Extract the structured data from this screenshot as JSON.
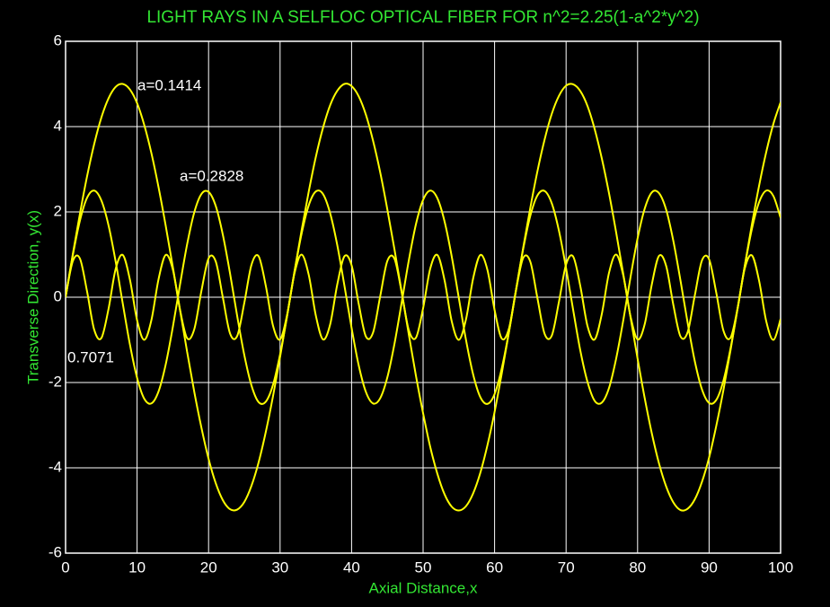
{
  "chart_data": {
    "type": "line",
    "title": "LIGHT RAYS IN A SELFLOC OPTICAL FIBER FOR n^2=2.25(1-a^2*y^2)",
    "x_label": "Axial Distance,x",
    "y_label": "Transverse Direction, y(x)",
    "annotations": [
      "a=0.1414",
      "a=0.2828",
      "0.7071"
    ],
    "xlim": [
      0,
      100
    ],
    "ylim": [
      -6,
      6
    ],
    "xticks": [
      0,
      10,
      20,
      30,
      40,
      50,
      60,
      70,
      80,
      90,
      100
    ],
    "yticks": [
      -6,
      -4,
      -2,
      0,
      2,
      4,
      6
    ],
    "grid": true,
    "x": [
      0,
      1,
      2,
      3,
      4,
      5,
      6,
      7,
      8,
      9,
      10,
      11,
      12,
      13,
      14,
      15,
      16,
      17,
      18,
      19,
      20,
      21,
      22,
      23,
      24,
      25,
      26,
      27,
      28,
      29,
      30,
      31,
      32,
      33,
      34,
      35,
      36,
      37,
      38,
      39,
      40,
      41,
      42,
      43,
      44,
      45,
      46,
      47,
      48,
      49,
      50,
      51,
      52,
      53,
      54,
      55,
      56,
      57,
      58,
      59,
      60,
      61,
      62,
      63,
      64,
      65,
      66,
      67,
      68,
      69,
      70,
      71,
      72,
      73,
      74,
      75,
      76,
      77,
      78,
      79,
      80,
      81,
      82,
      83,
      84,
      85,
      86,
      87,
      88,
      89,
      90,
      91,
      92,
      93,
      94,
      95,
      96,
      97,
      98,
      99,
      100
    ],
    "series": [
      {
        "color": "#ffff00",
        "values": [
          0,
          1.0,
          1.95,
          2.83,
          3.59,
          4.21,
          4.66,
          4.93,
          5.0,
          4.87,
          4.55,
          4.04,
          3.38,
          2.58,
          1.68,
          0.71,
          -0.29,
          -1.28,
          -2.22,
          -3.06,
          -3.79,
          -4.36,
          -4.76,
          -4.97,
          -4.98,
          -4.8,
          -4.42,
          -3.87,
          -3.16,
          -2.33,
          -1.4,
          -0.42,
          0.59,
          1.56,
          2.47,
          3.29,
          3.97,
          4.5,
          4.84,
          5.0,
          4.95,
          4.71,
          4.28,
          3.67,
          2.93,
          2.06,
          1.12,
          0.13,
          -0.87,
          -1.84,
          -2.72,
          -3.51,
          -4.14,
          -4.62,
          -4.91,
          -5.0,
          -4.9,
          -4.6,
          -4.12,
          -3.47,
          -2.69,
          -1.79,
          -0.83,
          0.17,
          1.16,
          2.1,
          2.96,
          3.7,
          4.3,
          4.72,
          4.96,
          4.99,
          4.83,
          4.48,
          3.94,
          3.25,
          2.44,
          1.52,
          0.54,
          -0.46,
          -1.44,
          -2.37,
          -3.2,
          -3.9,
          -4.44,
          -4.81,
          -4.99,
          -4.96,
          -4.74,
          -4.33,
          -3.76,
          -3.02,
          -2.18,
          -1.24,
          -0.25,
          0.75,
          1.72,
          2.62,
          3.41,
          4.07,
          4.57
        ]
      },
      {
        "color": "#ffff00",
        "values": [
          0,
          0.97,
          1.79,
          2.33,
          2.5,
          2.27,
          1.69,
          0.84,
          -0.15,
          -1.11,
          -1.89,
          -2.38,
          -2.49,
          -2.21,
          -1.58,
          -0.7,
          0.29,
          1.24,
          1.99,
          2.42,
          2.47,
          2.14,
          1.46,
          0.56,
          -0.44,
          -1.36,
          -2.07,
          -2.46,
          -2.45,
          -2.06,
          -1.34,
          -0.42,
          0.58,
          1.48,
          2.15,
          2.48,
          2.42,
          1.97,
          1.22,
          0.27,
          -0.72,
          -1.6,
          -2.22,
          -2.49,
          -2.37,
          -1.88,
          -1.09,
          -0.13,
          0.86,
          1.71,
          2.28,
          2.5,
          2.32,
          1.78,
          0.96,
          -0.02,
          -1.0,
          -1.81,
          -2.34,
          -2.5,
          -2.27,
          -1.67,
          -0.82,
          0.17,
          1.13,
          1.91,
          2.39,
          2.49,
          2.2,
          1.56,
          0.68,
          -0.31,
          -1.26,
          -1.99,
          -2.43,
          -2.47,
          -2.13,
          -1.44,
          -0.54,
          0.46,
          1.38,
          2.08,
          2.46,
          2.44,
          2.05,
          1.32,
          0.39,
          -0.6,
          -1.5,
          -2.16,
          -2.48,
          -2.41,
          -1.96,
          -1.2,
          -0.25,
          0.74,
          1.61,
          2.23,
          2.5,
          2.37,
          1.86
        ]
      },
      {
        "color": "#ffff00",
        "values": [
          0,
          0.84,
          0.91,
          0.14,
          -0.76,
          -0.96,
          -0.28,
          0.66,
          0.99,
          0.41,
          -0.54,
          -1.0,
          -0.54,
          0.42,
          0.99,
          0.65,
          -0.29,
          -0.96,
          -0.75,
          0.15,
          0.91,
          0.84,
          -0.01,
          -0.85,
          -0.91,
          -0.13,
          0.76,
          0.96,
          0.27,
          -0.66,
          -0.99,
          -0.4,
          0.55,
          1.0,
          0.53,
          -0.43,
          -0.99,
          -0.64,
          0.3,
          0.96,
          0.75,
          -0.16,
          -0.92,
          -0.83,
          0.02,
          0.85,
          0.9,
          0.12,
          -0.77,
          -0.95,
          -0.26,
          0.67,
          0.99,
          0.4,
          -0.56,
          -1.0,
          -0.52,
          0.44,
          0.99,
          0.64,
          -0.3,
          -0.97,
          -0.74,
          0.17,
          0.92,
          0.83,
          -0.03,
          -0.86,
          -0.9,
          -0.11,
          0.77,
          0.95,
          0.25,
          -0.68,
          -0.99,
          -0.39,
          0.57,
          1.0,
          0.51,
          -0.44,
          -0.99,
          -0.63,
          0.31,
          0.97,
          0.73,
          -0.18,
          -0.92,
          -0.82,
          0.04,
          0.86,
          0.89,
          0.11,
          -0.78,
          -0.95,
          -0.25,
          0.68,
          0.98,
          0.38,
          -0.57,
          -1.0,
          -0.51
        ]
      }
    ]
  }
}
